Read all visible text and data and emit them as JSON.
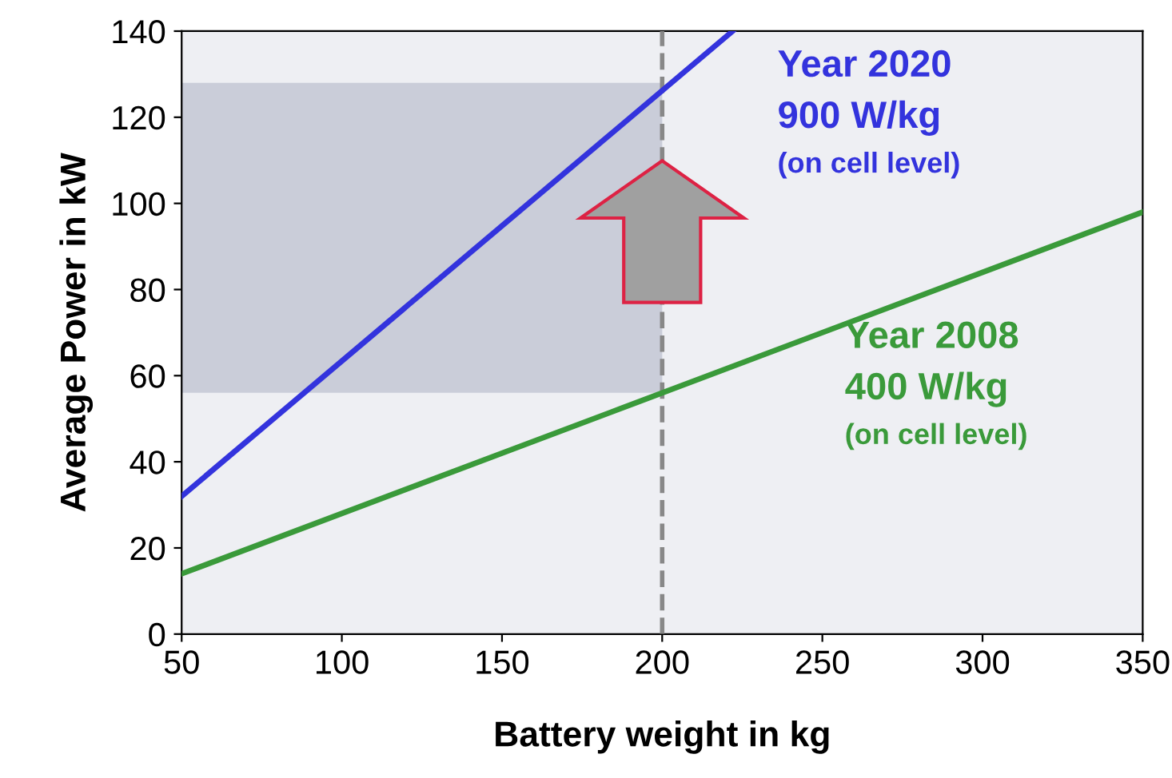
{
  "chart_data": {
    "type": "line",
    "xlabel": "Battery weight in kg",
    "ylabel": "Average Power in kW",
    "series": [
      {
        "name": "Year 2020\n900 W/kg\n(on cell level)",
        "color": "#3333dd",
        "x": [
          50,
          222
        ],
        "values": [
          32,
          140
        ]
      },
      {
        "name": "Year 2008\n400 W/kg\n(on cell level)",
        "color": "#3a9a3a",
        "x": [
          50,
          350
        ],
        "values": [
          14,
          98
        ]
      }
    ],
    "xlim": [
      50,
      350
    ],
    "ylim": [
      0,
      140
    ],
    "xticks": [
      50,
      100,
      150,
      200,
      250,
      300,
      350
    ],
    "yticks": [
      0,
      20,
      40,
      60,
      80,
      100,
      120,
      140
    ],
    "ref_lines": [
      {
        "axis": "x",
        "value": 200,
        "color": "#888888",
        "line_style": "dashed"
      }
    ],
    "bands": [
      {
        "axis": "y",
        "from": 56,
        "to": 128,
        "color": "#8890a8"
      }
    ],
    "grid": false,
    "legend": false
  }
}
